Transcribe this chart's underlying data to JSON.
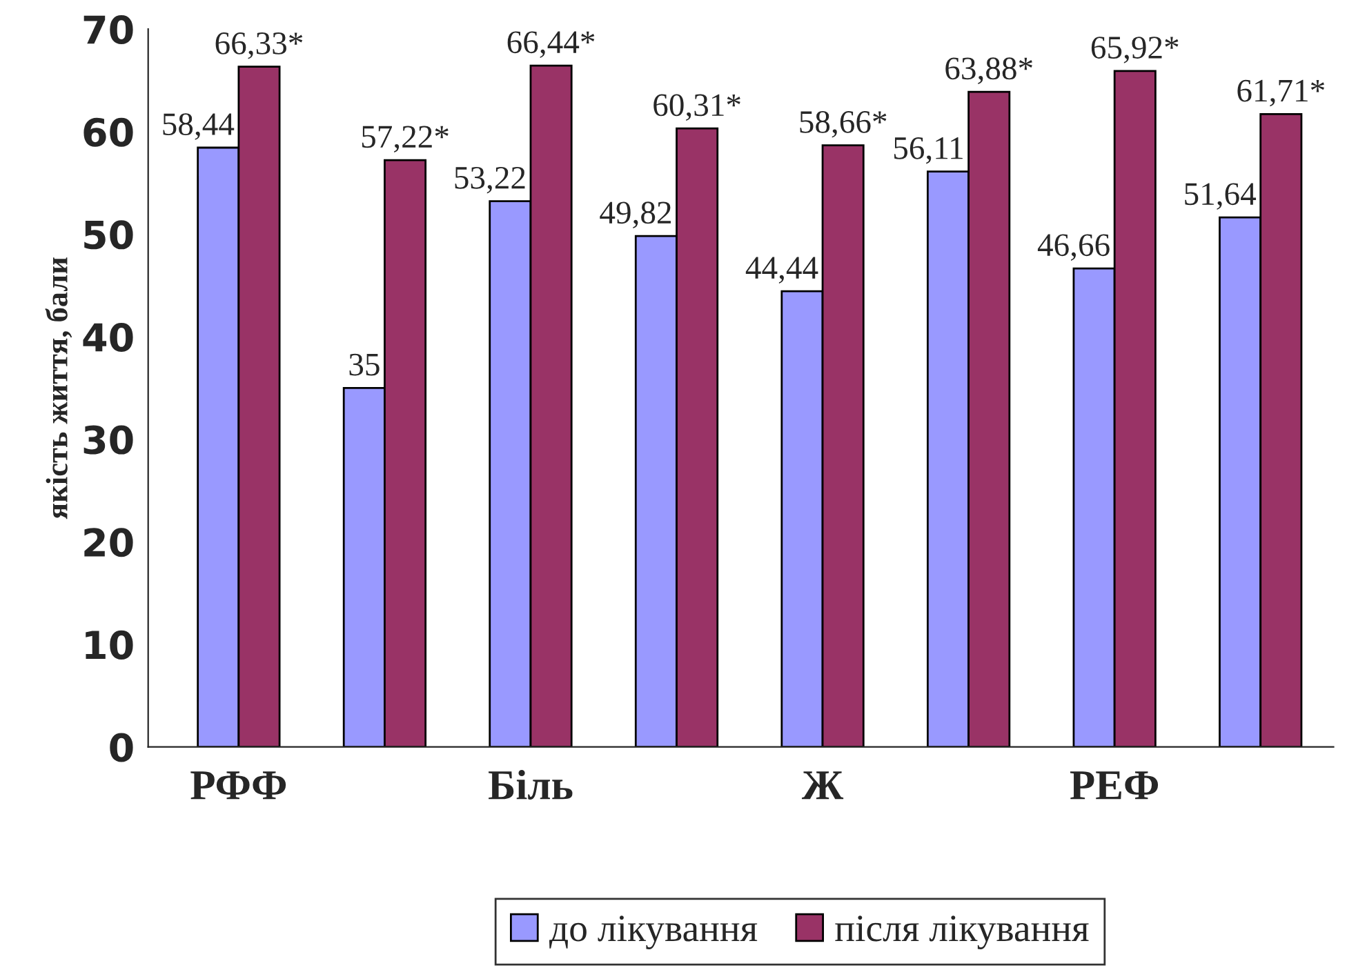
{
  "chart_data": {
    "type": "bar",
    "ylabel": "якість життя, бали",
    "categories": [
      "РФФ",
      null,
      "Біль",
      null,
      "Ж",
      null,
      "РЕФ",
      null
    ],
    "series": [
      {
        "name": "до лікування",
        "color": "#9999ff",
        "values": [
          58.44,
          35,
          53.22,
          49.82,
          44.44,
          56.11,
          46.66,
          51.64
        ],
        "value_labels": [
          "58,44",
          "35",
          "53,22",
          "49,82",
          "44,44",
          "56,11",
          "46,66",
          "51,64"
        ]
      },
      {
        "name": "після лікування",
        "color": "#993366",
        "values": [
          66.33,
          57.22,
          66.44,
          60.31,
          58.66,
          63.88,
          65.92,
          61.71
        ],
        "value_labels": [
          "66,33*",
          "57,22*",
          "66,44*",
          "60,31*",
          "58,66*",
          "63,88*",
          "65,92*",
          "61,71*"
        ]
      }
    ],
    "ylim": [
      0,
      70
    ],
    "yticks": [
      0,
      10,
      20,
      30,
      40,
      50,
      60,
      70
    ],
    "grid": false,
    "legend": "bottom"
  }
}
